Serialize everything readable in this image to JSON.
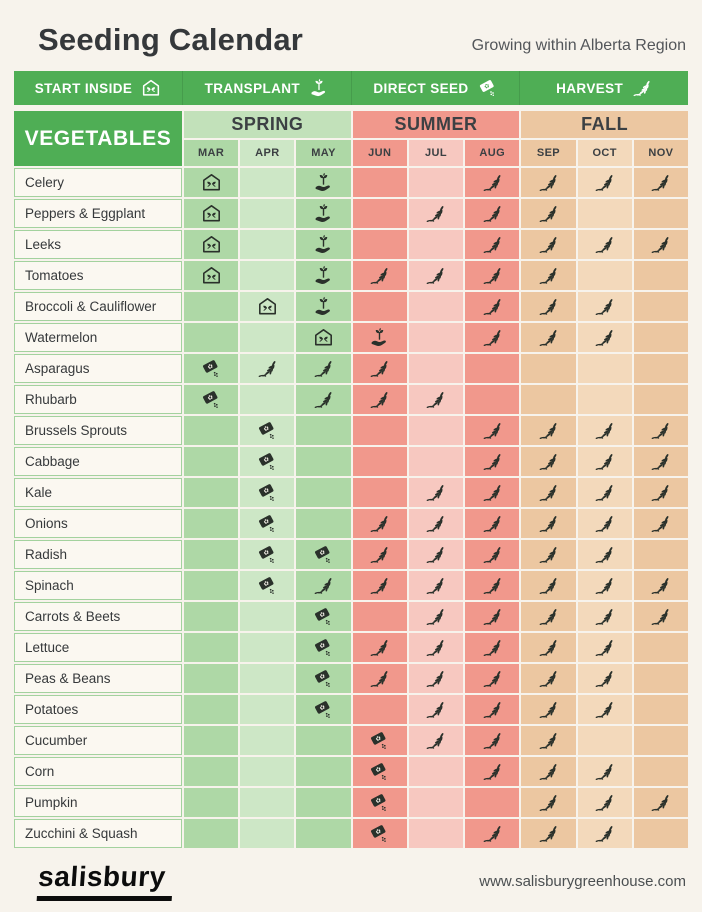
{
  "page": {
    "title": "Seeding Calendar",
    "subtitle": "Growing within Alberta Region",
    "logo_text": "salisbury",
    "website": "www.salisburygreenhouse.com"
  },
  "legend": {
    "items": [
      {
        "label": "START INSIDE",
        "icon": "start-inside"
      },
      {
        "label": "TRANSPLANT",
        "icon": "transplant"
      },
      {
        "label": "DIRECT SEED",
        "icon": "direct-seed"
      },
      {
        "label": "HARVEST",
        "icon": "harvest"
      }
    ]
  },
  "colors": {
    "green": "#4fae55",
    "background": "#f7f3ec",
    "icon": "#2a312b",
    "label_bg": "#fbf8f1",
    "label_border": "#a3d29e",
    "spring_band": "#c2e1ba",
    "spring_dark": "#aed8a6",
    "spring_light": "#cde7c6",
    "summer_band": "#f1988c",
    "summer_dark": "#f1988c",
    "summer_light": "#f7c8c0",
    "fall_band": "#ecc7a1",
    "fall_dark": "#ecc7a1",
    "fall_light": "#f3d9bb"
  },
  "table": {
    "row_header": "VEGETABLES",
    "seasons": [
      {
        "label": "SPRING",
        "months": [
          "MAR",
          "APR",
          "MAY"
        ]
      },
      {
        "label": "SUMMER",
        "months": [
          "JUN",
          "JUL",
          "AUG"
        ]
      },
      {
        "label": "FALL",
        "months": [
          "SEP",
          "OCT",
          "NOV"
        ]
      }
    ],
    "rows": [
      {
        "vegetable": "Celery",
        "cells": {
          "MAR": "start-inside",
          "MAY": "transplant",
          "AUG": "harvest",
          "SEP": "harvest",
          "OCT": "harvest",
          "NOV": "harvest"
        }
      },
      {
        "vegetable": "Peppers & Eggplant",
        "cells": {
          "MAR": "start-inside",
          "MAY": "transplant",
          "JUL": "harvest",
          "AUG": "harvest",
          "SEP": "harvest"
        }
      },
      {
        "vegetable": "Leeks",
        "cells": {
          "MAR": "start-inside",
          "MAY": "transplant",
          "AUG": "harvest",
          "SEP": "harvest",
          "OCT": "harvest",
          "NOV": "harvest"
        }
      },
      {
        "vegetable": "Tomatoes",
        "cells": {
          "MAR": "start-inside",
          "MAY": "transplant",
          "JUN": "harvest",
          "JUL": "harvest",
          "AUG": "harvest",
          "SEP": "harvest"
        }
      },
      {
        "vegetable": "Broccoli & Cauliflower",
        "cells": {
          "APR": "start-inside",
          "MAY": "transplant",
          "AUG": "harvest",
          "SEP": "harvest",
          "OCT": "harvest"
        }
      },
      {
        "vegetable": "Watermelon",
        "cells": {
          "MAY": "start-inside",
          "JUN": "transplant",
          "AUG": "harvest",
          "SEP": "harvest",
          "OCT": "harvest"
        }
      },
      {
        "vegetable": "Asparagus",
        "cells": {
          "MAR": "direct-seed",
          "APR": "harvest",
          "MAY": "harvest",
          "JUN": "harvest"
        }
      },
      {
        "vegetable": "Rhubarb",
        "cells": {
          "MAR": "direct-seed",
          "MAY": "harvest",
          "JUN": "harvest",
          "JUL": "harvest"
        }
      },
      {
        "vegetable": "Brussels Sprouts",
        "cells": {
          "APR": "direct-seed",
          "AUG": "harvest",
          "SEP": "harvest",
          "OCT": "harvest",
          "NOV": "harvest"
        }
      },
      {
        "vegetable": "Cabbage",
        "cells": {
          "APR": "direct-seed",
          "AUG": "harvest",
          "SEP": "harvest",
          "OCT": "harvest",
          "NOV": "harvest"
        }
      },
      {
        "vegetable": "Kale",
        "cells": {
          "APR": "direct-seed",
          "JUL": "harvest",
          "AUG": "harvest",
          "SEP": "harvest",
          "OCT": "harvest",
          "NOV": "harvest"
        }
      },
      {
        "vegetable": "Onions",
        "cells": {
          "APR": "direct-seed",
          "JUN": "harvest",
          "JUL": "harvest",
          "AUG": "harvest",
          "SEP": "harvest",
          "OCT": "harvest",
          "NOV": "harvest"
        }
      },
      {
        "vegetable": "Radish",
        "cells": {
          "APR": "direct-seed",
          "MAY": "direct-seed",
          "JUN": "harvest",
          "JUL": "harvest",
          "AUG": "harvest",
          "SEP": "harvest",
          "OCT": "harvest"
        }
      },
      {
        "vegetable": "Spinach",
        "cells": {
          "APR": "direct-seed",
          "MAY": "harvest",
          "JUN": "harvest",
          "JUL": "harvest",
          "AUG": "harvest",
          "SEP": "harvest",
          "OCT": "harvest",
          "NOV": "harvest"
        }
      },
      {
        "vegetable": "Carrots & Beets",
        "cells": {
          "MAY": "direct-seed",
          "JUL": "harvest",
          "AUG": "harvest",
          "SEP": "harvest",
          "OCT": "harvest",
          "NOV": "harvest"
        }
      },
      {
        "vegetable": "Lettuce",
        "cells": {
          "MAY": "direct-seed",
          "JUN": "harvest",
          "JUL": "harvest",
          "AUG": "harvest",
          "SEP": "harvest",
          "OCT": "harvest"
        }
      },
      {
        "vegetable": "Peas & Beans",
        "cells": {
          "MAY": "direct-seed",
          "JUN": "harvest",
          "JUL": "harvest",
          "AUG": "harvest",
          "SEP": "harvest",
          "OCT": "harvest"
        }
      },
      {
        "vegetable": "Potatoes",
        "cells": {
          "MAY": "direct-seed",
          "JUL": "harvest",
          "AUG": "harvest",
          "SEP": "harvest",
          "OCT": "harvest"
        }
      },
      {
        "vegetable": "Cucumber",
        "cells": {
          "JUN": "direct-seed",
          "JUL": "harvest",
          "AUG": "harvest",
          "SEP": "harvest"
        }
      },
      {
        "vegetable": "Corn",
        "cells": {
          "JUN": "direct-seed",
          "AUG": "harvest",
          "SEP": "harvest",
          "OCT": "harvest"
        }
      },
      {
        "vegetable": "Pumpkin",
        "cells": {
          "JUN": "direct-seed",
          "SEP": "harvest",
          "OCT": "harvest",
          "NOV": "harvest"
        }
      },
      {
        "vegetable": "Zucchini & Squash",
        "cells": {
          "JUN": "direct-seed",
          "AUG": "harvest",
          "SEP": "harvest",
          "OCT": "harvest"
        }
      }
    ]
  }
}
